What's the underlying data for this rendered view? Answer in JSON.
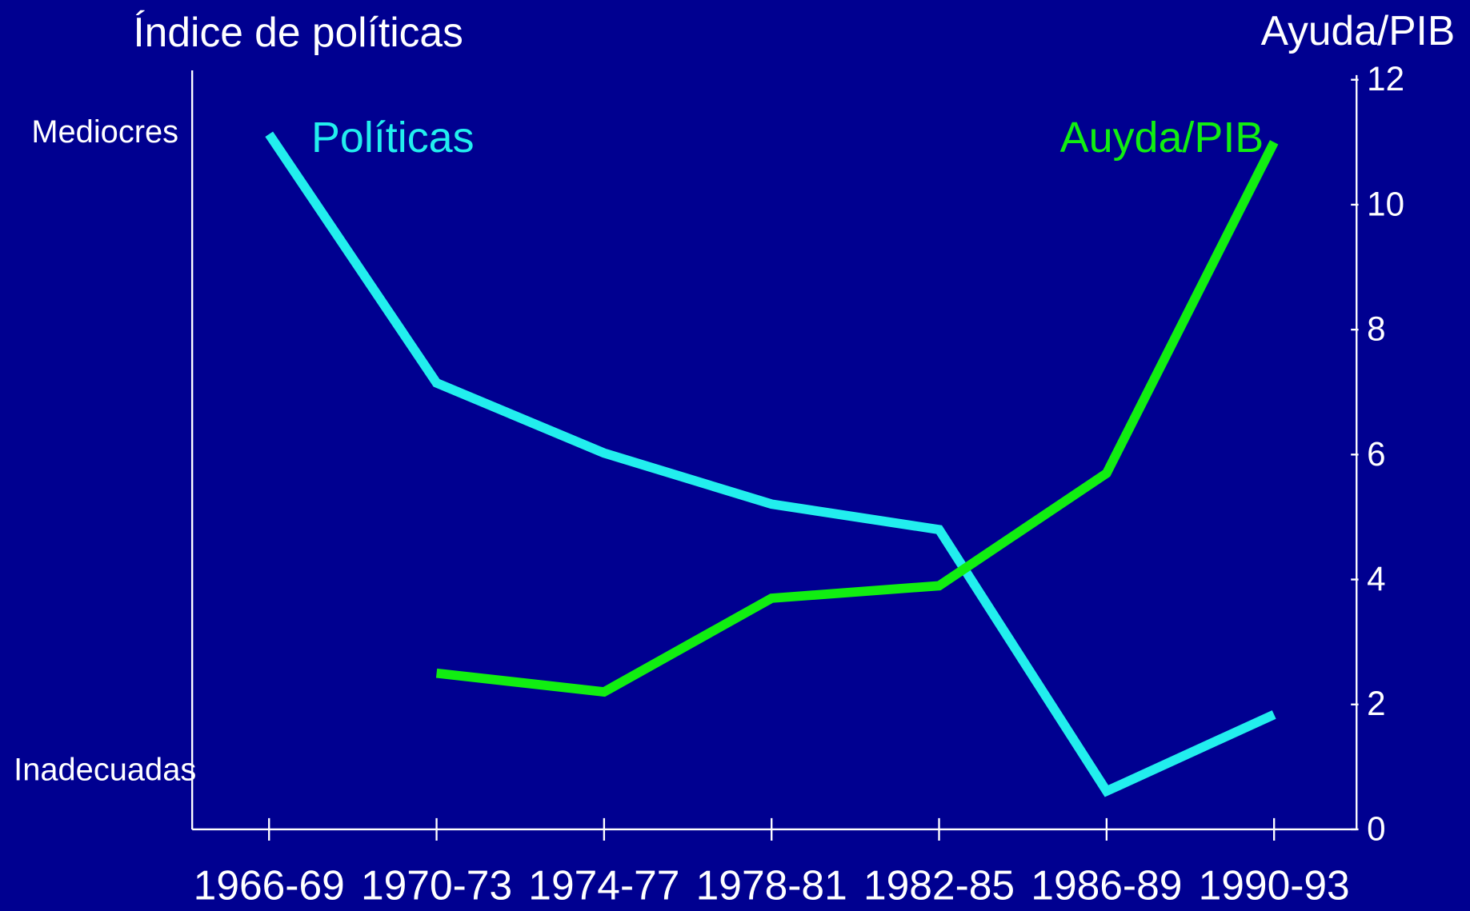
{
  "chart_data": {
    "type": "line",
    "ylabel": "Índice de políticas",
    "y2label": "Ayuda/PIB",
    "categories": [
      "1966-69",
      "1970-73",
      "1974-77",
      "1978-81",
      "1982-85",
      "1986-89",
      "1990-93"
    ],
    "series": [
      {
        "name": "Políticas",
        "color": "#22eeee",
        "axis": "y",
        "values": [
          1.0,
          0.61,
          0.5,
          0.42,
          0.38,
          -0.03,
          0.09
        ]
      },
      {
        "name": "Auyda/PIB",
        "color": "#11ee11",
        "axis": "y2",
        "values": [
          null,
          2.5,
          2.2,
          3.7,
          3.9,
          5.7,
          11
        ]
      }
    ],
    "ylim": [
      -0.09,
      1.1
    ],
    "yticks": [
      {
        "value": 1,
        "label": "Mediocres"
      },
      {
        "value": 0,
        "label": "Inadecuadas"
      }
    ],
    "y2lim": [
      0,
      12
    ],
    "y2ticks": [
      0,
      2,
      4,
      6,
      8,
      10,
      12
    ]
  }
}
